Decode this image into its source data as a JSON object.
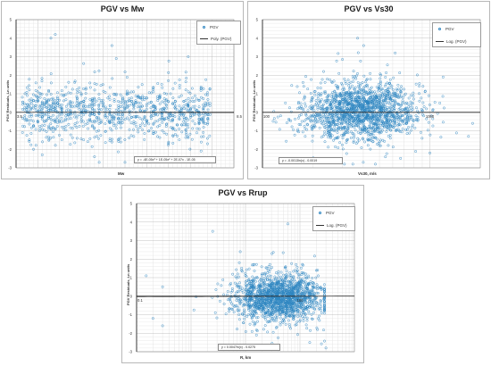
{
  "chart_data": [
    {
      "type": "scatter",
      "title": "PGV vs Mw",
      "xlabel": "Mw",
      "ylabel": "PGV Residuals, Ln units",
      "xscale": "linear",
      "xlim": [
        3.5,
        8.5
      ],
      "ylim": [
        -3,
        5
      ],
      "xticks": [
        3.5,
        4,
        4.5,
        5,
        5.5,
        6,
        6.5,
        7,
        7.5,
        8,
        8.5
      ],
      "xtick_labels": [
        "3.5",
        "",
        "",
        "",
        "",
        "",
        "",
        "",
        "",
        "",
        "8.5"
      ],
      "yticks": [
        -3,
        -2,
        -1,
        0,
        1,
        2,
        3,
        4,
        5
      ],
      "ytick_labels": [
        "-3",
        "-2",
        "-1",
        "0",
        "1",
        "2",
        "3",
        "4",
        "5"
      ],
      "grid": true,
      "legend_position": "top-right",
      "series": [
        {
          "name": "PGV",
          "kind": "points",
          "color": "#2e86c1",
          "distribution": "mw-bands",
          "seed": 11,
          "count": 1000,
          "sample_points": [
            [
              4.4,
              4.2
            ],
            [
              4.3,
              4.0
            ],
            [
              5.7,
              3.6
            ],
            [
              5.8,
              2.9
            ],
            [
              3.9,
              -2.0
            ],
            [
              4.1,
              -2.3
            ],
            [
              5.3,
              -2.4
            ],
            [
              6.0,
              -2.7
            ]
          ]
        },
        {
          "name": "Poly. (PGV)",
          "kind": "fit",
          "color": "#333333",
          "fit": "polynomial",
          "coefficients": [
            -4e-05,
            1e-05,
            2e-07,
            -1e-05
          ]
        }
      ],
      "annotation": "y = -4E-05x³ + 1E-05x² + 2E-07x - 1E-05"
    },
    {
      "type": "scatter",
      "title": "PGV vs Vs30",
      "xlabel": "Vs30, m/s",
      "ylabel": "PGV Residuals, Ln units",
      "xscale": "log",
      "xlim": [
        100,
        2000
      ],
      "ylim": [
        -3,
        5
      ],
      "xticks": [
        100,
        1000
      ],
      "xtick_labels": [
        "100",
        "1000"
      ],
      "yticks": [
        -3,
        -2,
        -1,
        0,
        1,
        2,
        3,
        4,
        5
      ],
      "ytick_labels": [
        "-3",
        "-2",
        "-1",
        "0",
        "1",
        "2",
        "3",
        "4",
        "5"
      ],
      "grid": true,
      "legend_position": "top-right",
      "series": [
        {
          "name": "PGV",
          "kind": "points",
          "color": "#2e86c1",
          "distribution": "vs30-cloud",
          "seed": 23,
          "count": 1700,
          "sample_points": [
            [
              370,
              4.0
            ],
            [
              620,
              3.2
            ],
            [
              1200,
              1.9
            ],
            [
              1700,
              -1.3
            ],
            [
              1800,
              -0.6
            ],
            [
              180,
              -1.3
            ],
            [
              400,
              -2.7
            ],
            [
              1000,
              -2.2
            ]
          ]
        },
        {
          "name": "Log. (PGV)",
          "kind": "fit",
          "color": "#333333",
          "fit": "log",
          "slope": -0.0013,
          "intercept": -0.0019
        }
      ],
      "annotation": "y = -0.0013ln(x) - 0.0019"
    },
    {
      "type": "scatter",
      "title": "PGV vs Rrup",
      "xlabel": "R, km",
      "ylabel": "PGV Residuals, Ln units",
      "xscale": "log",
      "xlim": [
        0.1,
        1000
      ],
      "ylim": [
        -3,
        5
      ],
      "xticks": [
        0.1,
        1,
        10,
        100,
        1000
      ],
      "xtick_labels": [
        "0.1",
        "",
        "",
        "100",
        ""
      ],
      "yticks": [
        -3,
        -2,
        -1,
        0,
        1,
        2,
        3,
        4,
        5
      ],
      "ytick_labels": [
        "-3",
        "-2",
        "-1",
        "0",
        "1",
        "2",
        "3",
        "4",
        "5"
      ],
      "grid": true,
      "legend_position": "top-right",
      "series": [
        {
          "name": "PGV",
          "kind": "points",
          "color": "#2e86c1",
          "distribution": "rrup-cloud",
          "seed": 37,
          "count": 1700,
          "sample_points": [
            [
              0.15,
              1.1
            ],
            [
              0.3,
              0.5
            ],
            [
              0.2,
              -1.2
            ],
            [
              0.3,
              -1.6
            ],
            [
              2.5,
              3.5
            ],
            [
              60,
              3.9
            ],
            [
              8,
              2.4
            ],
            [
              300,
              -2.8
            ]
          ]
        },
        {
          "name": "Log. (PGV)",
          "kind": "fit",
          "color": "#333333",
          "fit": "log",
          "slope": 0.0047,
          "intercept": -0.0275
        }
      ],
      "annotation": "y = 0.0047ln(x) - 0.0275"
    }
  ]
}
